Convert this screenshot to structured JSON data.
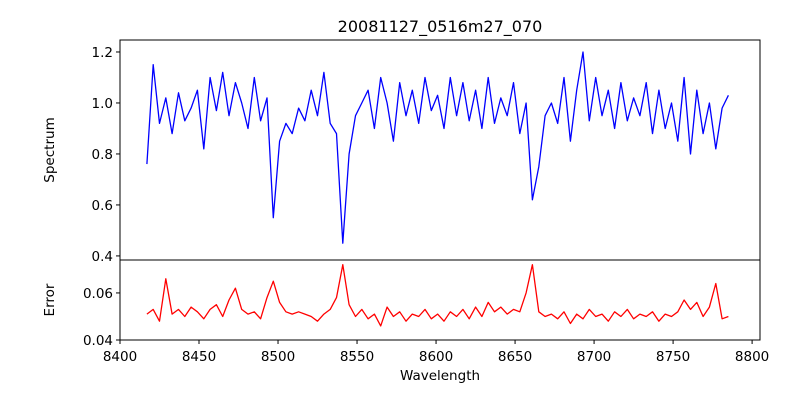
{
  "chart_data": {
    "type": "line",
    "title": "20081127_0516m27_070",
    "xlabel": "Wavelength",
    "xlim": [
      8400,
      8805
    ],
    "x_ticks": [
      8400,
      8450,
      8500,
      8550,
      8600,
      8650,
      8700,
      8750,
      8800
    ],
    "x_tick_labels": [
      "8400",
      "8450",
      "8500",
      "8550",
      "8600",
      "8650",
      "8700",
      "8750",
      "8800"
    ],
    "x_start": 8417,
    "x_step": 4,
    "panels": [
      {
        "name": "spectrum",
        "ylabel": "Spectrum",
        "ylim": [
          0.384,
          1.247
        ],
        "y_ticks": [
          0.4,
          0.6,
          0.8,
          1.0,
          1.2
        ],
        "y_tick_labels": [
          "0.4",
          "0.6",
          "0.8",
          "1.0",
          "1.2"
        ],
        "color": "#0000ff",
        "values": [
          0.76,
          1.15,
          0.92,
          1.02,
          0.88,
          1.04,
          0.93,
          0.98,
          1.05,
          0.82,
          1.1,
          0.97,
          1.12,
          0.95,
          1.08,
          1.0,
          0.9,
          1.1,
          0.93,
          1.02,
          0.55,
          0.85,
          0.92,
          0.88,
          0.98,
          0.93,
          1.05,
          0.95,
          1.12,
          0.92,
          0.88,
          0.45,
          0.8,
          0.95,
          1.0,
          1.05,
          0.9,
          1.1,
          1.0,
          0.85,
          1.08,
          0.95,
          1.05,
          0.92,
          1.1,
          0.97,
          1.03,
          0.9,
          1.1,
          0.95,
          1.08,
          0.93,
          1.05,
          0.9,
          1.1,
          0.92,
          1.02,
          0.95,
          1.08,
          0.88,
          1.0,
          0.62,
          0.75,
          0.95,
          1.0,
          0.92,
          1.1,
          0.85,
          1.05,
          1.2,
          0.93,
          1.1,
          0.95,
          1.05,
          0.9,
          1.08,
          0.93,
          1.02,
          0.95,
          1.08,
          0.88,
          1.05,
          0.9,
          1.0,
          0.85,
          1.1,
          0.8,
          1.05,
          0.88,
          1.0,
          0.82,
          0.98,
          1.03
        ]
      },
      {
        "name": "error",
        "ylabel": "Error",
        "ylim": [
          0.04,
          0.074
        ],
        "y_ticks": [
          0.04,
          0.06
        ],
        "y_tick_labels": [
          "0.04",
          "0.06"
        ],
        "color": "#ff0000",
        "values": [
          0.051,
          0.053,
          0.048,
          0.066,
          0.051,
          0.053,
          0.05,
          0.054,
          0.052,
          0.049,
          0.053,
          0.055,
          0.05,
          0.057,
          0.062,
          0.053,
          0.051,
          0.052,
          0.049,
          0.058,
          0.065,
          0.056,
          0.052,
          0.051,
          0.052,
          0.051,
          0.05,
          0.048,
          0.051,
          0.053,
          0.058,
          0.072,
          0.055,
          0.05,
          0.053,
          0.049,
          0.051,
          0.046,
          0.054,
          0.05,
          0.052,
          0.048,
          0.051,
          0.05,
          0.053,
          0.049,
          0.051,
          0.048,
          0.052,
          0.05,
          0.053,
          0.049,
          0.054,
          0.05,
          0.056,
          0.052,
          0.054,
          0.051,
          0.053,
          0.052,
          0.06,
          0.072,
          0.052,
          0.05,
          0.051,
          0.049,
          0.052,
          0.047,
          0.051,
          0.049,
          0.053,
          0.05,
          0.051,
          0.048,
          0.052,
          0.05,
          0.053,
          0.049,
          0.051,
          0.05,
          0.052,
          0.048,
          0.051,
          0.05,
          0.052,
          0.057,
          0.053,
          0.056,
          0.05,
          0.054,
          0.064,
          0.049,
          0.05
        ]
      }
    ]
  }
}
